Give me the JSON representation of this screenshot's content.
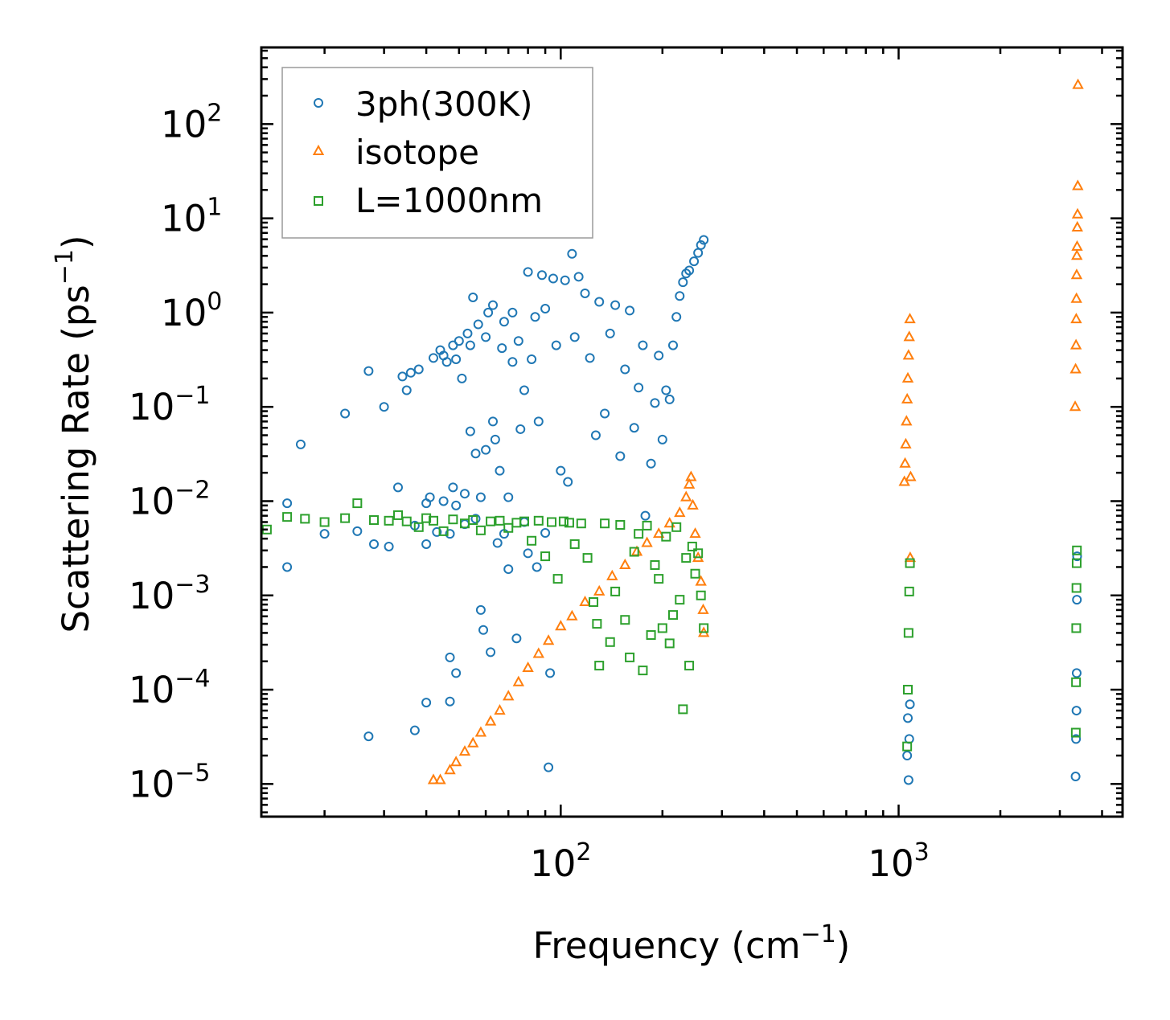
{
  "chart_data": {
    "type": "scatter",
    "title": "",
    "xlabel": "Frequency (cm",
    "xlabel_sup": "−1",
    "xlabel_close": ")",
    "ylabel": "Scattering Rate (ps",
    "ylabel_sup": "−1",
    "ylabel_close": ")",
    "xscale": "log",
    "yscale": "log",
    "xlim": [
      13,
      4600
    ],
    "ylim": [
      4.5e-06,
      650
    ],
    "legend_position": "top-left",
    "x_ticks": [
      {
        "value": 100,
        "base": "10",
        "exp": "2"
      },
      {
        "value": 1000,
        "base": "10",
        "exp": "3"
      }
    ],
    "y_ticks": [
      {
        "value": 1e-05,
        "base": "10",
        "exp": "−5"
      },
      {
        "value": 0.0001,
        "base": "10",
        "exp": "−4"
      },
      {
        "value": 0.001,
        "base": "10",
        "exp": "−3"
      },
      {
        "value": 0.01,
        "base": "10",
        "exp": "−2"
      },
      {
        "value": 0.1,
        "base": "10",
        "exp": "−1"
      },
      {
        "value": 1,
        "base": "10",
        "exp": "0"
      },
      {
        "value": 10,
        "base": "10",
        "exp": "1"
      },
      {
        "value": 100,
        "base": "10",
        "exp": "2"
      }
    ],
    "series": [
      {
        "name": "3ph(300K)",
        "color": "#1f77b4",
        "marker": "circle",
        "points": [
          [
            15.5,
            0.0095
          ],
          [
            15.5,
            0.002
          ],
          [
            17,
            0.04
          ],
          [
            20,
            0.0045
          ],
          [
            23,
            0.085
          ],
          [
            25,
            0.0048
          ],
          [
            27,
            0.24
          ],
          [
            27,
            3.2e-05
          ],
          [
            28,
            0.0035
          ],
          [
            30,
            0.1
          ],
          [
            31,
            0.0033
          ],
          [
            33,
            0.014
          ],
          [
            34,
            0.21
          ],
          [
            35,
            0.15
          ],
          [
            36,
            0.23
          ],
          [
            37,
            0.0055
          ],
          [
            37,
            3.7e-05
          ],
          [
            38,
            0.25
          ],
          [
            40,
            0.0095
          ],
          [
            40,
            0.0035
          ],
          [
            40,
            7.3e-05
          ],
          [
            41,
            0.011
          ],
          [
            42,
            0.33
          ],
          [
            43,
            0.0047
          ],
          [
            44,
            0.4
          ],
          [
            45,
            0.01
          ],
          [
            45,
            0.35
          ],
          [
            46,
            0.3
          ],
          [
            47,
            0.0045
          ],
          [
            47,
            0.00022
          ],
          [
            47,
            7.5e-05
          ],
          [
            48,
            0.014
          ],
          [
            48,
            0.45
          ],
          [
            49,
            0.32
          ],
          [
            49,
            0.00015
          ],
          [
            49,
            0.009
          ],
          [
            50,
            0.5
          ],
          [
            51,
            0.2
          ],
          [
            52,
            0.012
          ],
          [
            52,
            0.0057
          ],
          [
            53,
            0.6
          ],
          [
            54,
            0.055
          ],
          [
            54,
            0.45
          ],
          [
            55,
            1.45
          ],
          [
            56,
            0.0065
          ],
          [
            56,
            0.032
          ],
          [
            57,
            0.75
          ],
          [
            58,
            0.011
          ],
          [
            58,
            0.0007
          ],
          [
            59,
            0.00043
          ],
          [
            60,
            0.55
          ],
          [
            60,
            0.035
          ],
          [
            61,
            1.0
          ],
          [
            62,
            0.00025
          ],
          [
            63,
            0.07
          ],
          [
            63,
            1.2
          ],
          [
            64,
            0.045
          ],
          [
            65,
            0.0036
          ],
          [
            66,
            0.021
          ],
          [
            67,
            0.42
          ],
          [
            68,
            0.0045
          ],
          [
            68,
            0.8
          ],
          [
            70,
            0.011
          ],
          [
            70,
            0.0019
          ],
          [
            72,
            1.0
          ],
          [
            72,
            0.3
          ],
          [
            74,
            0.00035
          ],
          [
            75,
            0.5
          ],
          [
            76,
            0.058
          ],
          [
            78,
            0.15
          ],
          [
            78,
            0.006
          ],
          [
            80,
            0.0028
          ],
          [
            80,
            2.7
          ],
          [
            82,
            0.32
          ],
          [
            84,
            0.9
          ],
          [
            85,
            0.002
          ],
          [
            86,
            0.07
          ],
          [
            88,
            2.5
          ],
          [
            90,
            1.1
          ],
          [
            90,
            0.0046
          ],
          [
            92,
            1.5e-05
          ],
          [
            93,
            0.00015
          ],
          [
            95,
            2.3
          ],
          [
            97,
            0.45
          ],
          [
            100,
            0.021
          ],
          [
            103,
            2.2
          ],
          [
            105,
            0.016
          ],
          [
            108,
            4.2
          ],
          [
            110,
            0.55
          ],
          [
            113,
            2.4
          ],
          [
            118,
            1.6
          ],
          [
            122,
            0.33
          ],
          [
            127,
            0.05
          ],
          [
            130,
            1.3
          ],
          [
            135,
            0.085
          ],
          [
            140,
            0.6
          ],
          [
            145,
            1.2
          ],
          [
            150,
            0.03
          ],
          [
            155,
            0.25
          ],
          [
            160,
            1.05
          ],
          [
            165,
            0.06
          ],
          [
            170,
            0.16
          ],
          [
            175,
            0.45
          ],
          [
            178,
            0.007
          ],
          [
            185,
            0.025
          ],
          [
            190,
            0.11
          ],
          [
            195,
            0.35
          ],
          [
            200,
            0.045
          ],
          [
            205,
            0.15
          ],
          [
            210,
            0.12
          ],
          [
            215,
            0.45
          ],
          [
            220,
            0.9
          ],
          [
            225,
            1.5
          ],
          [
            230,
            2.1
          ],
          [
            235,
            2.6
          ],
          [
            240,
            2.8
          ],
          [
            248,
            3.5
          ],
          [
            255,
            4.3
          ],
          [
            260,
            5.2
          ],
          [
            265,
            5.9
          ],
          [
            1060,
            2e-05
          ],
          [
            1065,
            5e-05
          ],
          [
            1070,
            1.1e-05
          ],
          [
            1075,
            3e-05
          ],
          [
            1080,
            7e-05
          ],
          [
            3340,
            1.2e-05
          ],
          [
            3350,
            3e-05
          ],
          [
            3360,
            6e-05
          ],
          [
            3365,
            0.00015
          ],
          [
            3370,
            0.0009
          ],
          [
            3375,
            0.0026
          ]
        ]
      },
      {
        "name": "isotope",
        "color": "#ff7f0e",
        "marker": "triangle",
        "points": [
          [
            42,
            1.1e-05
          ],
          [
            44,
            1.1e-05
          ],
          [
            47,
            1.4e-05
          ],
          [
            49,
            1.7e-05
          ],
          [
            52,
            2.2e-05
          ],
          [
            55,
            2.7e-05
          ],
          [
            58,
            3.5e-05
          ],
          [
            62,
            4.6e-05
          ],
          [
            66,
            6e-05
          ],
          [
            70,
            8.5e-05
          ],
          [
            75,
            0.00012
          ],
          [
            80,
            0.00017
          ],
          [
            86,
            0.00024
          ],
          [
            92,
            0.00033
          ],
          [
            100,
            0.00047
          ],
          [
            108,
            0.0006
          ],
          [
            118,
            0.00085
          ],
          [
            130,
            0.0011
          ],
          [
            142,
            0.0016
          ],
          [
            155,
            0.0021
          ],
          [
            168,
            0.0029
          ],
          [
            180,
            0.0036
          ],
          [
            195,
            0.0045
          ],
          [
            210,
            0.0058
          ],
          [
            225,
            0.0075
          ],
          [
            235,
            0.011
          ],
          [
            240,
            0.015
          ],
          [
            243,
            0.018
          ],
          [
            246,
            0.009
          ],
          [
            250,
            0.0045
          ],
          [
            255,
            0.0025
          ],
          [
            260,
            0.0014
          ],
          [
            264,
            0.0007
          ],
          [
            265,
            0.0004
          ],
          [
            1040,
            0.016
          ],
          [
            1045,
            0.025
          ],
          [
            1050,
            0.04
          ],
          [
            1055,
            0.07
          ],
          [
            1060,
            0.12
          ],
          [
            1065,
            0.2
          ],
          [
            1070,
            0.35
          ],
          [
            1075,
            0.55
          ],
          [
            1080,
            0.85
          ],
          [
            1082,
            0.0025
          ],
          [
            1085,
            0.018
          ],
          [
            3330,
            0.1
          ],
          [
            3340,
            0.25
          ],
          [
            3350,
            0.45
          ],
          [
            3355,
            0.85
          ],
          [
            3360,
            1.4
          ],
          [
            3365,
            2.5
          ],
          [
            3370,
            4.0
          ],
          [
            3375,
            5.0
          ],
          [
            3380,
            8.0
          ],
          [
            3385,
            11.0
          ],
          [
            3390,
            22.0
          ],
          [
            3395,
            260.0
          ]
        ]
      },
      {
        "name": "L=1000nm",
        "color": "#2ca02c",
        "marker": "square",
        "points": [
          [
            13.5,
            0.005
          ],
          [
            15.5,
            0.0068
          ],
          [
            17.5,
            0.0065
          ],
          [
            20,
            0.006
          ],
          [
            23,
            0.0066
          ],
          [
            25,
            0.0095
          ],
          [
            28,
            0.0063
          ],
          [
            31,
            0.0062
          ],
          [
            33,
            0.0071
          ],
          [
            35,
            0.0061
          ],
          [
            38,
            0.0053
          ],
          [
            40,
            0.0066
          ],
          [
            42,
            0.0062
          ],
          [
            45,
            0.0048
          ],
          [
            48,
            0.0064
          ],
          [
            52,
            0.0058
          ],
          [
            55,
            0.0063
          ],
          [
            58,
            0.0049
          ],
          [
            62,
            0.0061
          ],
          [
            66,
            0.0062
          ],
          [
            70,
            0.0052
          ],
          [
            74,
            0.0059
          ],
          [
            78,
            0.0061
          ],
          [
            82,
            0.0038
          ],
          [
            86,
            0.0062
          ],
          [
            90,
            0.0026
          ],
          [
            94,
            0.006
          ],
          [
            98,
            0.0015
          ],
          [
            102,
            0.0061
          ],
          [
            106,
            0.0059
          ],
          [
            110,
            0.0035
          ],
          [
            115,
            0.0058
          ],
          [
            120,
            0.0025
          ],
          [
            125,
            0.00085
          ],
          [
            128,
            0.0005
          ],
          [
            130,
            0.00018
          ],
          [
            135,
            0.0058
          ],
          [
            140,
            0.00032
          ],
          [
            145,
            0.0011
          ],
          [
            150,
            0.0056
          ],
          [
            155,
            0.00055
          ],
          [
            160,
            0.00022
          ],
          [
            165,
            0.0029
          ],
          [
            170,
            0.0045
          ],
          [
            175,
            0.00016
          ],
          [
            180,
            0.0055
          ],
          [
            185,
            0.00038
          ],
          [
            190,
            0.0021
          ],
          [
            195,
            0.0015
          ],
          [
            200,
            0.00045
          ],
          [
            205,
            0.0042
          ],
          [
            210,
            0.00031
          ],
          [
            215,
            0.00062
          ],
          [
            220,
            0.0053
          ],
          [
            225,
            0.0009
          ],
          [
            230,
            6.2e-05
          ],
          [
            235,
            0.0025
          ],
          [
            240,
            0.00018
          ],
          [
            245,
            0.0033
          ],
          [
            250,
            0.0017
          ],
          [
            255,
            0.0028
          ],
          [
            260,
            0.001
          ],
          [
            265,
            0.00045
          ],
          [
            1060,
            2.5e-05
          ],
          [
            1065,
            0.0001
          ],
          [
            1070,
            0.0004
          ],
          [
            1075,
            0.0011
          ],
          [
            1080,
            0.0022
          ],
          [
            3345,
            3.5e-05
          ],
          [
            3350,
            0.00012
          ],
          [
            3355,
            0.00045
          ],
          [
            3360,
            0.0012
          ],
          [
            3365,
            0.0022
          ],
          [
            3370,
            0.003
          ]
        ]
      }
    ]
  }
}
